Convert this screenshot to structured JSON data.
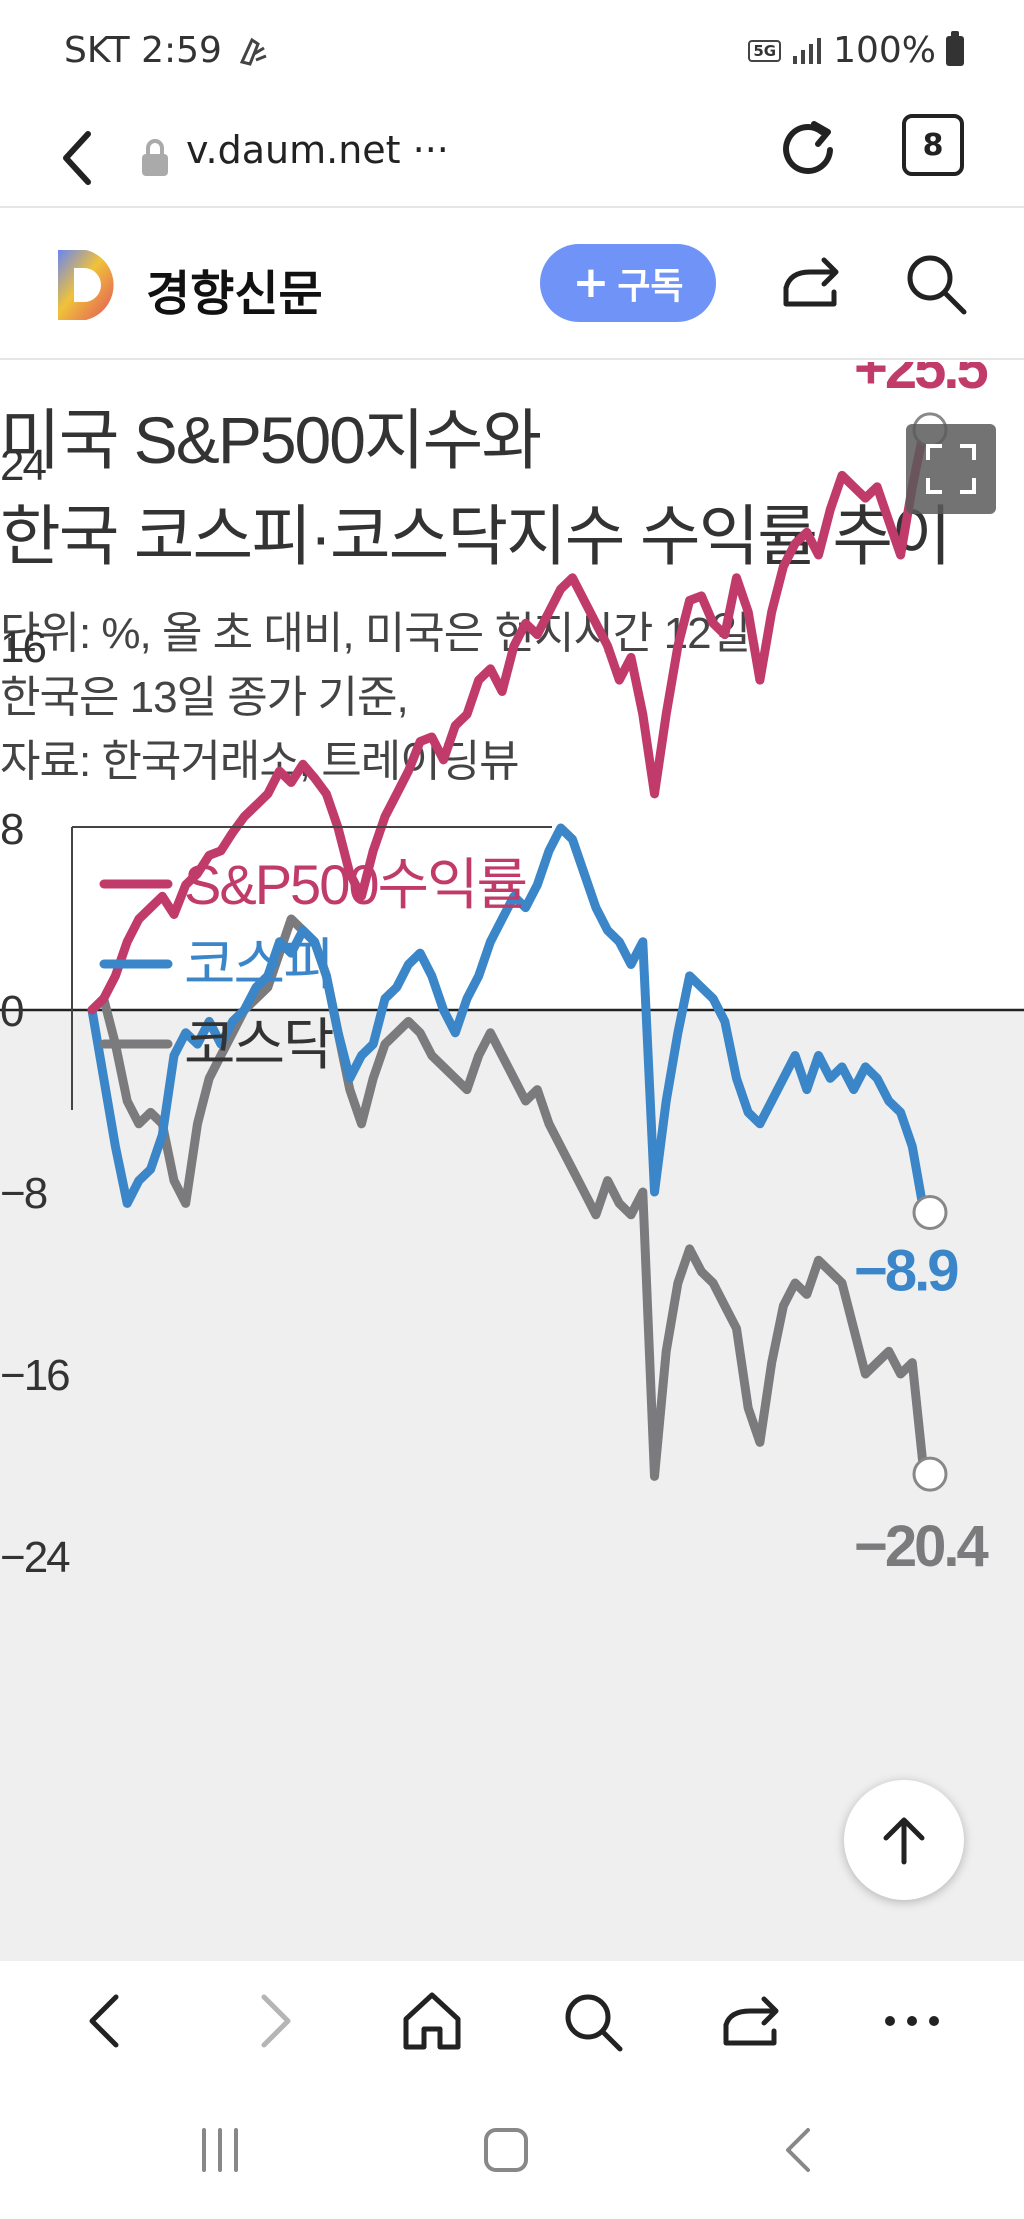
{
  "status_bar": {
    "carrier_time": "SKT 2:59",
    "network": "5G",
    "battery": "100%"
  },
  "browser": {
    "url": "v.daum.net ···",
    "tab_count": "8"
  },
  "header": {
    "press_name": "경향신문",
    "subscribe_label": "구독"
  },
  "article": {
    "title_lines": [
      "미국 S&P500지수와",
      "한국 코스피·코스닥지수 수익률 추이"
    ],
    "subtitle_lines": [
      "단위: %, 올 초 대비, 미국은 현지시간 12일,",
      "한국은 13일 종가 기준,",
      "자료: 한국거래소, 트레이딩뷰"
    ]
  },
  "chart_data": {
    "type": "line",
    "title": "미국 S&P500지수와 한국 코스피·코스닥지수 수익률 추이",
    "ylim": [
      -24,
      27
    ],
    "y_ticks": [
      24,
      16,
      8,
      0,
      -8,
      -16,
      -24
    ],
    "y_tick_labels": [
      "24",
      "16",
      "8",
      "0",
      "−8",
      "−16",
      "−24"
    ],
    "grid": false,
    "legend": "top-left",
    "negative_region_shaded": true,
    "series": [
      {
        "name": "S&P500수익률",
        "color": "#c13b6a",
        "end_label": "+25.5",
        "values": [
          0,
          0.5,
          1.5,
          3,
          4,
          4.5,
          5,
          4.2,
          5.5,
          6,
          6.8,
          7,
          7.8,
          8.5,
          9,
          9.5,
          10.5,
          10,
          10.8,
          10.2,
          9.5,
          8,
          6,
          5,
          7,
          8.5,
          9.5,
          10.5,
          11.8,
          12,
          11,
          12.5,
          13,
          14.5,
          15,
          14,
          16,
          17,
          16.5,
          17.5,
          18.5,
          19,
          18,
          17,
          16,
          14.5,
          15.5,
          13,
          9.5,
          13,
          16,
          18,
          18.2,
          17,
          16.5,
          19,
          17.5,
          14.5,
          17.5,
          19.5,
          20.5,
          21,
          20,
          22,
          23.5,
          23,
          22.5,
          23,
          21.5,
          20,
          23,
          25.5
        ]
      },
      {
        "name": "코스피",
        "color": "#3a86c8",
        "end_label": "−8.9",
        "values": [
          0,
          -3,
          -6,
          -8.5,
          -7.5,
          -7,
          -5.5,
          -2,
          -1,
          -1.5,
          -0.5,
          -1.5,
          -0.5,
          0,
          1,
          1.5,
          3,
          2.5,
          3.5,
          3,
          1.5,
          -1,
          -3,
          -2,
          -1.5,
          0.5,
          1,
          2,
          2.5,
          1.5,
          0,
          -1,
          0.5,
          1.5,
          3,
          4,
          5,
          4.5,
          5.5,
          7,
          8,
          7.5,
          6,
          4.5,
          3.5,
          3,
          2,
          3,
          -8,
          -4,
          -1,
          1.5,
          1,
          0.5,
          -0.5,
          -3,
          -4.5,
          -5,
          -4,
          -3,
          -2,
          -3.5,
          -2,
          -3,
          -2.5,
          -3.5,
          -2.5,
          -3,
          -4,
          -4.5,
          -6,
          -8.9
        ]
      },
      {
        "name": "코스닥",
        "color": "#7b7b7d",
        "end_label": "−20.4",
        "values": [
          0,
          0.5,
          -1.5,
          -4,
          -5,
          -4.5,
          -5,
          -7.5,
          -8.5,
          -5,
          -3,
          -2,
          -1,
          0,
          0.5,
          1,
          2.5,
          4,
          3.5,
          3,
          1.5,
          -1,
          -3.5,
          -5,
          -3,
          -1.5,
          -1,
          -0.5,
          -1,
          -2,
          -2.5,
          -3,
          -3.5,
          -2,
          -1,
          -2,
          -3,
          -4,
          -3.5,
          -5,
          -6,
          -7,
          -8,
          -9,
          -7.5,
          -8.5,
          -9,
          -8,
          -20.5,
          -15,
          -12,
          -10.5,
          -11.5,
          -12,
          -13,
          -14,
          -17.5,
          -19,
          -15.5,
          -13,
          -12,
          -12.5,
          -11,
          -11.5,
          -12,
          -14,
          -16,
          -15.5,
          -15,
          -16,
          -15.5,
          -20.4
        ]
      }
    ]
  }
}
